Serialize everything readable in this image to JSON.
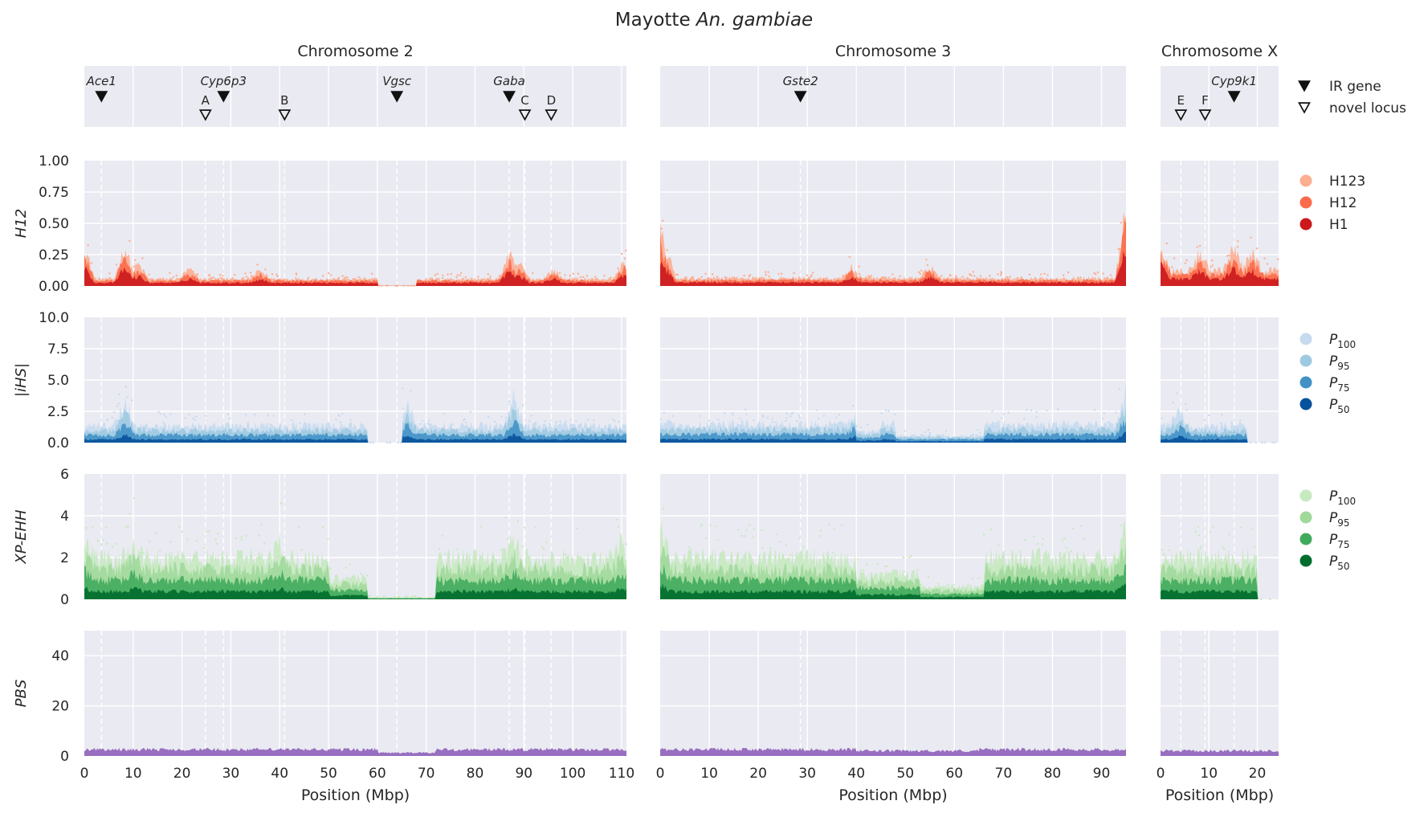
{
  "figure": {
    "title_plain": "Mayotte ",
    "title_italic": "An. gambiae"
  },
  "chart_data": {
    "type": "scatter",
    "chromosomes": [
      {
        "name": "Chromosome 2",
        "xlim": [
          0,
          111
        ],
        "ticks": [
          0,
          10,
          20,
          30,
          40,
          50,
          60,
          70,
          80,
          90,
          100,
          110
        ]
      },
      {
        "name": "Chromosome 3",
        "xlim": [
          0,
          95
        ],
        "ticks": [
          0,
          10,
          20,
          30,
          40,
          50,
          60,
          70,
          80,
          90
        ]
      },
      {
        "name": "Chromosome X",
        "xlim": [
          0,
          24.4
        ],
        "ticks": [
          0,
          10,
          20
        ]
      }
    ],
    "xlabel": "Position (Mbp)",
    "ir_genes": [
      {
        "label": "Ace1",
        "chrom": 0,
        "pos": 3.5
      },
      {
        "label": "Cyp6p3",
        "chrom": 0,
        "pos": 28.5
      },
      {
        "label": "Vgsc",
        "chrom": 0,
        "pos": 64
      },
      {
        "label": "Gaba",
        "chrom": 0,
        "pos": 87
      },
      {
        "label": "Gste2",
        "chrom": 1,
        "pos": 28.6
      },
      {
        "label": "Cyp9k1",
        "chrom": 2,
        "pos": 15.2
      }
    ],
    "novel_loci": [
      {
        "label": "A",
        "chrom": 0,
        "pos": 24.8
      },
      {
        "label": "B",
        "chrom": 0,
        "pos": 41
      },
      {
        "label": "C",
        "chrom": 0,
        "pos": 90.2
      },
      {
        "label": "D",
        "chrom": 0,
        "pos": 95.6
      },
      {
        "label": "E",
        "chrom": 2,
        "pos": 4.2
      },
      {
        "label": "F",
        "chrom": 2,
        "pos": 9.2
      }
    ],
    "marker_legend": [
      {
        "label": "IR gene",
        "marker": "filled-triangle"
      },
      {
        "label": "novel locus",
        "marker": "open-triangle"
      }
    ],
    "rows": [
      {
        "ylabel": "H12",
        "ylim": [
          0,
          1
        ],
        "ytick_labels": [
          "0.00",
          "0.25",
          "0.50",
          "0.75",
          "1.00"
        ],
        "legend": [
          {
            "label": "H123",
            "color": "#fcae91"
          },
          {
            "label": "H12",
            "color": "#fb6a4a"
          },
          {
            "label": "H1",
            "color": "#cb181d"
          }
        ],
        "profiles": [
          {
            "base": 0.055,
            "peaks": [
              [
                0,
                0.3
              ],
              [
                8.3,
                0.3
              ],
              [
                11,
                0.17
              ],
              [
                21.5,
                0.13
              ],
              [
                36,
                0.12
              ],
              [
                87,
                0.25
              ],
              [
                89,
                0.18
              ],
              [
                96,
                0.12
              ],
              [
                110.5,
                0.19
              ]
            ],
            "gaps": [
              [
                60,
                68,
                0.03
              ]
            ]
          },
          {
            "base": 0.06,
            "peaks": [
              [
                0,
                0.45
              ],
              [
                1,
                0.3
              ],
              [
                39,
                0.14
              ],
              [
                55,
                0.15
              ],
              [
                95,
                0.63
              ]
            ],
            "gaps": []
          },
          {
            "base": 0.12,
            "peaks": [
              [
                0,
                0.35
              ],
              [
                8,
                0.25
              ],
              [
                15,
                0.28
              ],
              [
                19,
                0.25
              ]
            ],
            "gaps": []
          }
        ]
      },
      {
        "ylabel": "|iHS|",
        "ylim": [
          0,
          10
        ],
        "ytick_labels": [
          "0.0",
          "2.5",
          "5.0",
          "7.5",
          "10.0"
        ],
        "legend": [
          {
            "label": "P",
            "sub": "100",
            "color": "#c6dbef"
          },
          {
            "label": "P",
            "sub": "95",
            "color": "#9ecae1"
          },
          {
            "label": "P",
            "sub": "75",
            "color": "#4292c6"
          },
          {
            "label": "P",
            "sub": "50",
            "color": "#08519c"
          }
        ],
        "profiles": [
          {
            "base": 1.3,
            "peaks": [
              [
                8.3,
                3.2
              ],
              [
                66,
                3.0
              ],
              [
                88,
                3.5
              ]
            ],
            "gaps": [
              [
                58,
                65,
                0
              ]
            ]
          },
          {
            "base": 1.4,
            "peaks": [
              [
                40,
                2.5
              ],
              [
                95,
                3.8
              ]
            ],
            "gaps": [
              [
                40,
                45,
                0.6
              ],
              [
                48,
                66,
                0.4
              ]
            ]
          },
          {
            "base": 1.3,
            "peaks": [
              [
                4,
                2.5
              ]
            ],
            "gaps": [
              [
                18,
                24.4,
                0
              ]
            ]
          }
        ]
      },
      {
        "ylabel": "XP-EHH",
        "ylim": [
          0,
          6
        ],
        "ytick_labels": [
          "0",
          "2",
          "4",
          "6"
        ],
        "legend": [
          {
            "label": "P",
            "sub": "100",
            "color": "#c7e9c0"
          },
          {
            "label": "P",
            "sub": "95",
            "color": "#a1d99b"
          },
          {
            "label": "P",
            "sub": "75",
            "color": "#41ab5d"
          },
          {
            "label": "P",
            "sub": "50",
            "color": "#006d2c"
          }
        ],
        "profiles": [
          {
            "base": 1.9,
            "peaks": [
              [
                0,
                2.8
              ],
              [
                10,
                2.6
              ],
              [
                40,
                2.6
              ],
              [
                88,
                2.7
              ],
              [
                110,
                2.5
              ]
            ],
            "gaps": [
              [
                50,
                58,
                0.5
              ],
              [
                58,
                72,
                0.05
              ]
            ]
          },
          {
            "base": 1.9,
            "peaks": [
              [
                0,
                3.5
              ],
              [
                95,
                3.5
              ]
            ],
            "gaps": [
              [
                40,
                53,
                0.6
              ],
              [
                53,
                66,
                0.3
              ]
            ]
          },
          {
            "base": 1.9,
            "peaks": [],
            "gaps": [
              [
                20,
                24.4,
                0
              ]
            ]
          }
        ]
      },
      {
        "ylabel": "PBS",
        "ylim": [
          0,
          50
        ],
        "ytick_labels": [
          "0",
          "20",
          "40"
        ],
        "legend": [],
        "profiles": [
          {
            "base": 2.5,
            "peaks": [],
            "gaps": [
              [
                60,
                72,
                0.5
              ]
            ]
          },
          {
            "base": 2.5,
            "peaks": [],
            "gaps": [
              [
                40,
                65,
                0.8
              ]
            ]
          },
          {
            "base": 2.0,
            "peaks": [],
            "gaps": []
          }
        ]
      }
    ]
  }
}
